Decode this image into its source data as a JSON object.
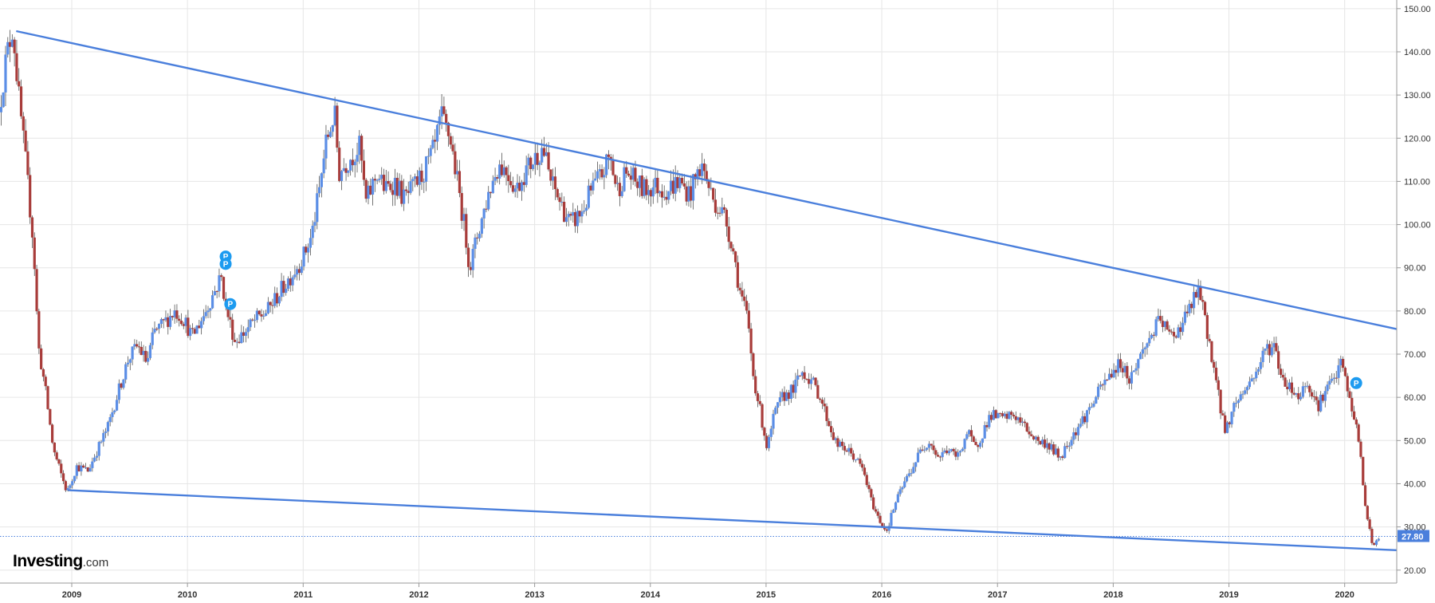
{
  "logo": {
    "brand": "Investing",
    "suffix": ".com"
  },
  "colors": {
    "up": "#5b8ee6",
    "down": "#a83c3a",
    "trendline": "#4a7fdc",
    "priceLine": "#4a7fdc",
    "grid": "#e6e6e6",
    "axis": "#999999"
  },
  "chart_data": {
    "type": "candlestick",
    "title": "",
    "xlabel": "",
    "ylabel": "",
    "ylim": [
      17,
      152
    ],
    "xlim": [
      2008.38,
      2020.45
    ],
    "yticks": [
      "20.00",
      "30.00",
      "40.00",
      "50.00",
      "60.00",
      "70.00",
      "80.00",
      "90.00",
      "100.00",
      "110.00",
      "120.00",
      "130.00",
      "140.00",
      "150.00"
    ],
    "xticks": [
      "2009",
      "2010",
      "2011",
      "2012",
      "2013",
      "2014",
      "2015",
      "2016",
      "2017",
      "2018",
      "2019",
      "2020"
    ],
    "last_price": "27.80",
    "anchors": [
      [
        2008.38,
        126
      ],
      [
        2008.44,
        138
      ],
      [
        2008.5,
        146
      ],
      [
        2008.55,
        130
      ],
      [
        2008.62,
        112
      ],
      [
        2008.68,
        95
      ],
      [
        2008.72,
        72
      ],
      [
        2008.78,
        62
      ],
      [
        2008.85,
        48
      ],
      [
        2008.92,
        42
      ],
      [
        2008.97,
        38
      ],
      [
        2009.05,
        44
      ],
      [
        2009.15,
        43
      ],
      [
        2009.25,
        49
      ],
      [
        2009.32,
        53
      ],
      [
        2009.42,
        62
      ],
      [
        2009.5,
        69
      ],
      [
        2009.58,
        72
      ],
      [
        2009.66,
        68
      ],
      [
        2009.72,
        75
      ],
      [
        2009.8,
        77
      ],
      [
        2009.9,
        80
      ],
      [
        2009.98,
        78
      ],
      [
        2010.05,
        74
      ],
      [
        2010.15,
        79
      ],
      [
        2010.2,
        82
      ],
      [
        2010.3,
        88
      ],
      [
        2010.35,
        80
      ],
      [
        2010.42,
        73
      ],
      [
        2010.5,
        75
      ],
      [
        2010.6,
        78
      ],
      [
        2010.7,
        80
      ],
      [
        2010.8,
        84
      ],
      [
        2010.9,
        88
      ],
      [
        2011.0,
        92
      ],
      [
        2011.08,
        97
      ],
      [
        2011.15,
        108
      ],
      [
        2011.2,
        118
      ],
      [
        2011.28,
        126
      ],
      [
        2011.32,
        112
      ],
      [
        2011.4,
        115
      ],
      [
        2011.5,
        118
      ],
      [
        2011.55,
        105
      ],
      [
        2011.65,
        112
      ],
      [
        2011.72,
        108
      ],
      [
        2011.8,
        110
      ],
      [
        2011.88,
        106
      ],
      [
        2011.95,
        108
      ],
      [
        2012.05,
        112
      ],
      [
        2012.15,
        118
      ],
      [
        2012.2,
        125
      ],
      [
        2012.28,
        120
      ],
      [
        2012.33,
        112
      ],
      [
        2012.4,
        100
      ],
      [
        2012.45,
        90
      ],
      [
        2012.52,
        98
      ],
      [
        2012.62,
        108
      ],
      [
        2012.7,
        114
      ],
      [
        2012.78,
        112
      ],
      [
        2012.85,
        108
      ],
      [
        2012.92,
        112
      ],
      [
        2013.0,
        115
      ],
      [
        2013.08,
        118
      ],
      [
        2013.15,
        110
      ],
      [
        2013.25,
        104
      ],
      [
        2013.32,
        100
      ],
      [
        2013.42,
        103
      ],
      [
        2013.5,
        108
      ],
      [
        2013.6,
        112
      ],
      [
        2013.66,
        116
      ],
      [
        2013.72,
        108
      ],
      [
        2013.8,
        112
      ],
      [
        2013.88,
        110
      ],
      [
        2013.95,
        108
      ],
      [
        2014.05,
        109
      ],
      [
        2014.15,
        108
      ],
      [
        2014.25,
        110
      ],
      [
        2014.35,
        107
      ],
      [
        2014.45,
        114
      ],
      [
        2014.5,
        110
      ],
      [
        2014.55,
        106
      ],
      [
        2014.65,
        102
      ],
      [
        2014.72,
        95
      ],
      [
        2014.78,
        85
      ],
      [
        2014.85,
        78
      ],
      [
        2014.9,
        65
      ],
      [
        2014.95,
        58
      ],
      [
        2015.02,
        48
      ],
      [
        2015.08,
        56
      ],
      [
        2015.15,
        60
      ],
      [
        2015.25,
        62
      ],
      [
        2015.32,
        66
      ],
      [
        2015.4,
        64
      ],
      [
        2015.48,
        60
      ],
      [
        2015.55,
        54
      ],
      [
        2015.62,
        49
      ],
      [
        2015.7,
        48
      ],
      [
        2015.78,
        46
      ],
      [
        2015.85,
        43
      ],
      [
        2015.92,
        36
      ],
      [
        2015.98,
        32
      ],
      [
        2016.05,
        29
      ],
      [
        2016.12,
        35
      ],
      [
        2016.2,
        40
      ],
      [
        2016.28,
        44
      ],
      [
        2016.35,
        48
      ],
      [
        2016.42,
        50
      ],
      [
        2016.5,
        46
      ],
      [
        2016.58,
        48
      ],
      [
        2016.66,
        46
      ],
      [
        2016.75,
        52
      ],
      [
        2016.82,
        48
      ],
      [
        2016.9,
        53
      ],
      [
        2016.95,
        56
      ],
      [
        2017.05,
        55
      ],
      [
        2017.15,
        56
      ],
      [
        2017.25,
        53
      ],
      [
        2017.35,
        50
      ],
      [
        2017.45,
        49
      ],
      [
        2017.55,
        46
      ],
      [
        2017.65,
        51
      ],
      [
        2017.75,
        55
      ],
      [
        2017.82,
        58
      ],
      [
        2017.9,
        62
      ],
      [
        2018.0,
        66
      ],
      [
        2018.08,
        68
      ],
      [
        2018.15,
        64
      ],
      [
        2018.25,
        70
      ],
      [
        2018.35,
        75
      ],
      [
        2018.42,
        78
      ],
      [
        2018.5,
        74
      ],
      [
        2018.58,
        76
      ],
      [
        2018.66,
        80
      ],
      [
        2018.75,
        85
      ],
      [
        2018.8,
        78
      ],
      [
        2018.86,
        70
      ],
      [
        2018.92,
        60
      ],
      [
        2018.98,
        52
      ],
      [
        2019.05,
        58
      ],
      [
        2019.15,
        62
      ],
      [
        2019.25,
        66
      ],
      [
        2019.32,
        71
      ],
      [
        2019.4,
        72
      ],
      [
        2019.46,
        65
      ],
      [
        2019.55,
        62
      ],
      [
        2019.62,
        60
      ],
      [
        2019.68,
        64
      ],
      [
        2019.78,
        58
      ],
      [
        2019.85,
        62
      ],
      [
        2019.92,
        64
      ],
      [
        2019.98,
        68
      ],
      [
        2020.02,
        64
      ],
      [
        2020.06,
        58
      ],
      [
        2020.1,
        55
      ],
      [
        2020.15,
        46
      ],
      [
        2020.18,
        36
      ],
      [
        2020.22,
        30
      ],
      [
        2020.26,
        25
      ],
      [
        2020.3,
        27.8
      ]
    ],
    "trendlines": [
      {
        "name": "",
        "from": [
          2008.52,
          144.8
        ],
        "to": [
          2020.45,
          75.8
        ]
      },
      {
        "name": "",
        "from": [
          2008.97,
          38.5
        ],
        "to": [
          2020.45,
          24.6
        ]
      }
    ],
    "markers": [
      {
        "label": "P",
        "at": [
          2010.33,
          92.6
        ]
      },
      {
        "label": "P",
        "at": [
          2010.33,
          90.9
        ]
      },
      {
        "label": "P",
        "at": [
          2010.37,
          81.6
        ]
      },
      {
        "label": "P",
        "at": [
          2020.1,
          63.3
        ]
      }
    ]
  }
}
